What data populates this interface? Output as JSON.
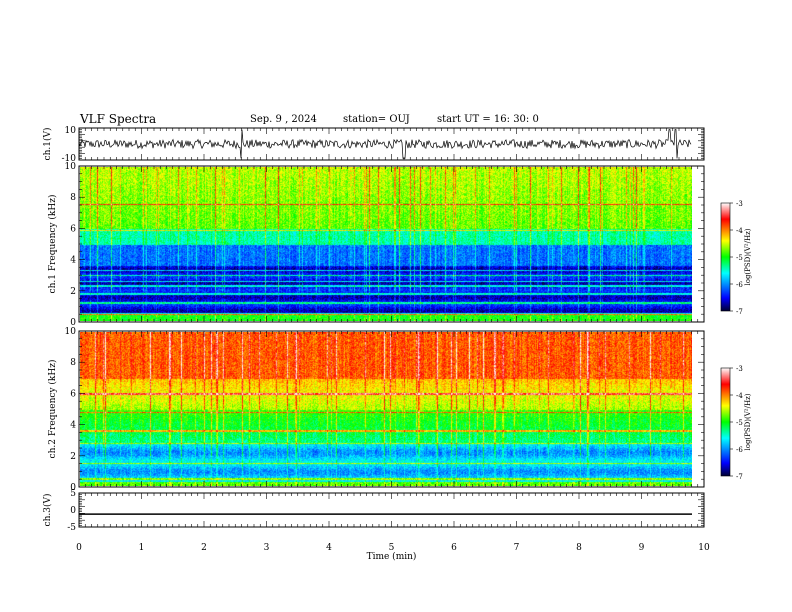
{
  "header": {
    "title": "VLF Spectra",
    "date": "Sep. 9 , 2024",
    "station": "station= OUJ",
    "start": "start  UT =   16: 30: 0"
  },
  "colors": {
    "spectrogram_scale": [
      "#000033",
      "#0000ff",
      "#00ffff",
      "#00ff00",
      "#ffff00",
      "#ff0000",
      "#ffffff"
    ]
  },
  "chart_data": [
    {
      "type": "line",
      "panel": "ch1-waveform",
      "ylabel": "ch.1(V)",
      "ylim": [
        -10,
        10
      ],
      "ytick_labels": [
        "10",
        "-10"
      ],
      "xlim": [
        0,
        10
      ],
      "series": [
        {
          "values_summary": "noisy waveform centered near 0 V with amplitude about ±3 V, sporadic spikes near t=2.6, 5.2, 9.45, 9.55 min"
        }
      ]
    },
    {
      "type": "heatmap",
      "panel": "ch1-spectrogram",
      "ylabel": "ch.1 Frequency  (kHz)",
      "ylim": [
        0,
        10
      ],
      "ytick_labels": [
        "0",
        "2",
        "4",
        "6",
        "8",
        "10"
      ],
      "xlim": [
        0,
        10
      ],
      "colorbar": {
        "label": "log(PSD)(V²/Hz)",
        "range": [
          -7,
          -3
        ],
        "tick_labels": [
          "-3",
          "-4",
          "-5",
          "-6",
          "-7"
        ]
      }
    },
    {
      "type": "heatmap",
      "panel": "ch2-spectrogram",
      "ylabel": "ch.2 Frequency  (kHz)",
      "ylim": [
        0,
        10
      ],
      "ytick_labels": [
        "0",
        "2",
        "4",
        "6",
        "8",
        "10"
      ],
      "xlim": [
        0,
        10
      ],
      "colorbar": {
        "label": "log(PSD)(V²/Hz)",
        "range": [
          -7,
          -3
        ],
        "tick_labels": [
          "-3",
          "-4",
          "-5",
          "-6",
          "-7"
        ]
      }
    },
    {
      "type": "line",
      "panel": "ch3-waveform",
      "ylabel": "ch.3(V)",
      "ylim": [
        -5,
        5
      ],
      "ytick_labels": [
        "5",
        "0",
        "-5"
      ],
      "xlim": [
        0,
        10
      ],
      "series": [
        {
          "values": [
            -1.2,
            -1.2
          ]
        }
      ]
    }
  ],
  "x_axis": {
    "label": "Time  (min)",
    "tick_labels": [
      "0",
      "1",
      "2",
      "3",
      "4",
      "5",
      "6",
      "7",
      "8",
      "9",
      "10"
    ]
  }
}
